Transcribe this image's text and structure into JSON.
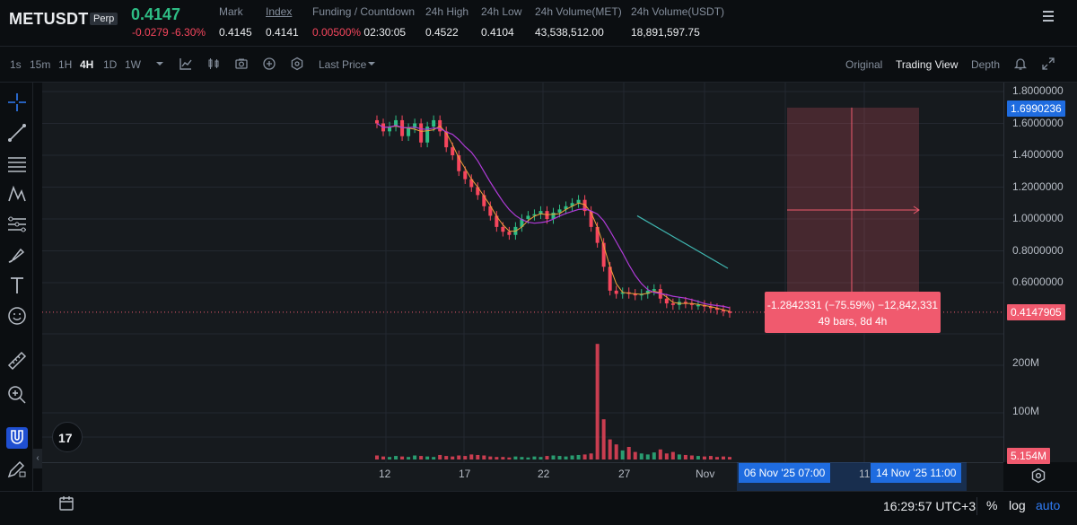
{
  "header": {
    "symbol": "METUSDT",
    "badge": "Perp",
    "last_price": "0.4147",
    "change": "-0.0279 -6.30%",
    "stats": [
      {
        "label": "Mark",
        "value": "0.4145"
      },
      {
        "label": "Index",
        "value": "0.4141"
      },
      {
        "label": "Funding / Countdown",
        "value": "0.00500%",
        "value2": "02:30:05"
      },
      {
        "label": "24h High",
        "value": "0.4522"
      },
      {
        "label": "24h Low",
        "value": "0.4104"
      },
      {
        "label": "24h Volume(MET)",
        "value": "43,538,512.00"
      },
      {
        "label": "24h Volume(USDT)",
        "value": "18,891,597.75"
      }
    ]
  },
  "toolbar": {
    "timeframes": [
      "1s",
      "15m",
      "1H",
      "4H",
      "1D",
      "1W"
    ],
    "active_timeframe": "4H",
    "price_type": "Last Price",
    "views": [
      "Original",
      "Trading View",
      "Depth"
    ],
    "active_view": "Trading View"
  },
  "chart_data": {
    "type": "candlestick",
    "y_axis_labels": [
      "1.8000000",
      "1.6000000",
      "1.4000000",
      "1.2000000",
      "1.0000000",
      "0.8000000",
      "0.6000000"
    ],
    "ylim": [
      0.3,
      1.8
    ],
    "volume_axis_labels": [
      "200M",
      "100M"
    ],
    "x_axis_labels": [
      "12",
      "17",
      "22",
      "27",
      "Nov"
    ],
    "price_badges": {
      "high_marker": "1.6990236",
      "current": "0.4147905",
      "volume": "5.154M"
    },
    "range_time_badges": [
      "06 Nov '25   07:00",
      "14 Nov '25   11:00"
    ],
    "hidden_x_label": "11",
    "measurement": {
      "line1": "-1.2842331 (−75.59%) −12,842,331",
      "line2": "49 bars, 8d 4h"
    },
    "close_series": [
      1.6,
      1.55,
      1.58,
      1.62,
      1.52,
      1.57,
      1.6,
      1.48,
      1.58,
      1.62,
      1.55,
      1.45,
      1.4,
      1.3,
      1.25,
      1.2,
      1.15,
      1.08,
      1.02,
      0.95,
      0.92,
      0.9,
      0.95,
      1.0,
      1.02,
      1.03,
      1.05,
      1.0,
      1.04,
      1.06,
      1.08,
      1.1,
      1.12,
      1.05,
      0.95,
      0.85,
      0.7,
      0.55,
      0.53,
      0.54,
      0.53,
      0.52,
      0.53,
      0.55,
      0.56,
      0.5,
      0.47,
      0.46,
      0.48,
      0.47,
      0.46,
      0.46,
      0.45,
      0.44,
      0.43,
      0.42,
      0.41
    ],
    "volume_series_millions": [
      8,
      6,
      5,
      7,
      6,
      5,
      8,
      7,
      6,
      5,
      9,
      7,
      6,
      8,
      7,
      10,
      9,
      8,
      6,
      5,
      5,
      4,
      6,
      5,
      4,
      6,
      5,
      7,
      8,
      7,
      6,
      8,
      9,
      10,
      12,
      230,
      80,
      40,
      30,
      18,
      25,
      15,
      12,
      10,
      14,
      20,
      12,
      15,
      10,
      9,
      8,
      7,
      6,
      7,
      5,
      6,
      5
    ]
  },
  "left_tools": [
    "crosshair-icon",
    "trendline-icon",
    "horizontal-lines-icon",
    "pattern-icon",
    "fib-icon",
    "brush-icon",
    "text-icon",
    "emoji-icon",
    "ruler-icon",
    "zoom-in-icon",
    "magnet-icon",
    "pencil-lock-icon",
    "lock-icon"
  ],
  "bottombar": {
    "time": "16:29:57 UTC+3",
    "percent": "%",
    "log": "log",
    "auto": "auto"
  },
  "colors": {
    "up": "#2ebd85",
    "down": "#f6465d",
    "accent": "#1f6ce0",
    "ma_purple": "#b03bd8",
    "ma_orange": "#f0a13a",
    "ma_teal": "#3fb6b0"
  }
}
